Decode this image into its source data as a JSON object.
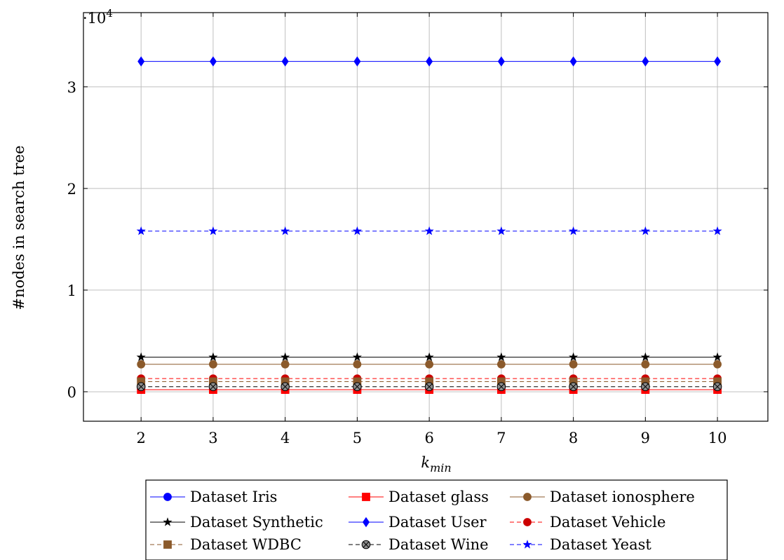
{
  "chart_data": {
    "type": "line",
    "title": "",
    "xlabel_base": "k",
    "xlabel_sub": "min",
    "ylabel": "#nodes in search tree",
    "y_scale_base": "·10",
    "y_scale_exp": "4",
    "x": [
      2,
      3,
      4,
      5,
      6,
      7,
      8,
      9,
      10
    ],
    "x_ticks": [
      2,
      3,
      4,
      5,
      6,
      7,
      8,
      9,
      10
    ],
    "y_ticks": [
      0,
      1,
      2,
      3
    ],
    "y_tick_labels": [
      "0",
      "1",
      "2",
      "3"
    ],
    "xlim": [
      1.2,
      10.7
    ],
    "ylim": [
      -0.29,
      3.73
    ],
    "grid": true,
    "legend_position": "bottom",
    "legend_columns": 3,
    "series": [
      {
        "name": "Dataset Iris",
        "values": [
          0.02,
          0.02,
          0.02,
          0.02,
          0.02,
          0.02,
          0.02,
          0.02,
          0.02
        ],
        "color": "#0000ff",
        "dash": "solid",
        "marker": "circle"
      },
      {
        "name": "Dataset glass",
        "values": [
          0.02,
          0.02,
          0.02,
          0.02,
          0.02,
          0.02,
          0.02,
          0.02,
          0.02
        ],
        "color": "#ff0000",
        "dash": "solid",
        "marker": "square"
      },
      {
        "name": "Dataset ionosphere",
        "values": [
          0.27,
          0.27,
          0.27,
          0.27,
          0.27,
          0.27,
          0.27,
          0.27,
          0.27
        ],
        "color": "#8b5a2b",
        "dash": "solid",
        "marker": "circle"
      },
      {
        "name": "Dataset Synthetic",
        "values": [
          0.34,
          0.34,
          0.34,
          0.34,
          0.34,
          0.34,
          0.34,
          0.34,
          0.34
        ],
        "color": "#000000",
        "dash": "solid",
        "marker": "star"
      },
      {
        "name": "Dataset User",
        "values": [
          3.25,
          3.25,
          3.25,
          3.25,
          3.25,
          3.25,
          3.25,
          3.25,
          3.25
        ],
        "color": "#0000ff",
        "dash": "solid",
        "marker": "diamond"
      },
      {
        "name": "Dataset Vehicle",
        "values": [
          0.13,
          0.13,
          0.13,
          0.13,
          0.13,
          0.13,
          0.13,
          0.13,
          0.13
        ],
        "color": "#ff0000",
        "dash": "dashed",
        "marker": "circle-red"
      },
      {
        "name": "Dataset WDBC",
        "values": [
          0.1,
          0.1,
          0.1,
          0.1,
          0.1,
          0.1,
          0.1,
          0.1,
          0.1
        ],
        "color": "#8b5a2b",
        "dash": "dashed",
        "marker": "square"
      },
      {
        "name": "Dataset Wine",
        "values": [
          0.05,
          0.05,
          0.05,
          0.05,
          0.05,
          0.05,
          0.05,
          0.05,
          0.05
        ],
        "color": "#000000",
        "dash": "dashed",
        "marker": "otimes"
      },
      {
        "name": "Dataset Yeast",
        "values": [
          1.58,
          1.58,
          1.58,
          1.58,
          1.58,
          1.58,
          1.58,
          1.58,
          1.58
        ],
        "color": "#0000ff",
        "dash": "dashed",
        "marker": "star"
      }
    ]
  }
}
